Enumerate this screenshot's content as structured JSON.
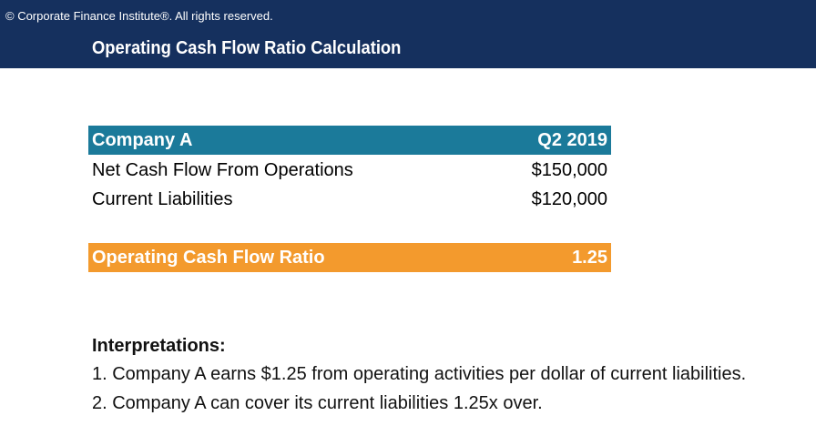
{
  "header": {
    "copyright": "© Corporate Finance Institute®. All rights reserved.",
    "title": "Operating Cash Flow Ratio Calculation"
  },
  "table": {
    "header": [
      "Company A",
      "Q2 2019"
    ],
    "rows": [
      [
        "Net Cash Flow From Operations",
        "$150,000"
      ],
      [
        "Current Liabilities",
        "$120,000"
      ]
    ],
    "result": [
      "Operating Cash Flow Ratio",
      "1.25"
    ]
  },
  "interpretations": {
    "title": "Interpretations:",
    "items": [
      "1. Company A earns $1.25 from operating activities per dollar of current liabilities.",
      "2. Company A can cover its current liabilities 1.25x over."
    ]
  }
}
